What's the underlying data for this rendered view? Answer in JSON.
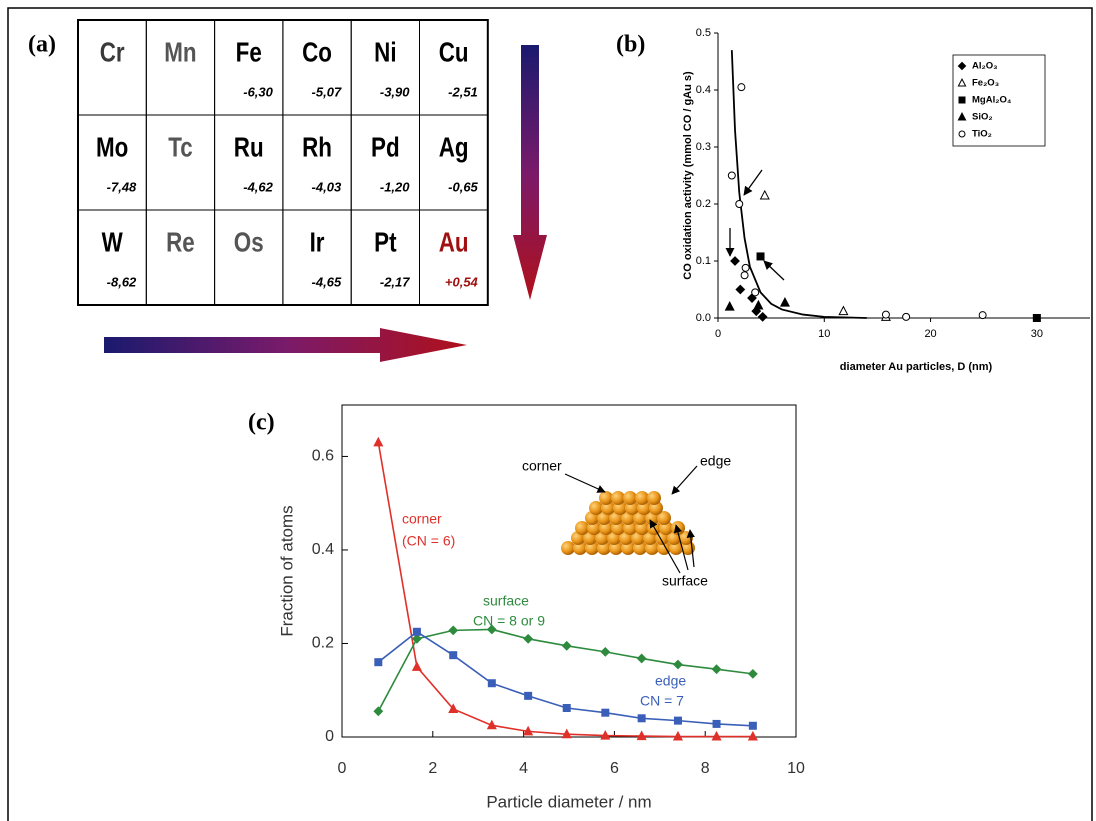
{
  "table_panel": {
    "label": "(a)",
    "cells": [
      [
        {
          "symbol": "Cr",
          "color": "#3a3a3a"
        },
        {
          "symbol": "Mn",
          "color": "#555555"
        },
        {
          "symbol": "Fe",
          "value": "-6,30",
          "color": "#000000"
        },
        {
          "symbol": "Co",
          "value": "-5,07",
          "color": "#000000"
        },
        {
          "symbol": "Ni",
          "value": "-3,90",
          "color": "#000000"
        },
        {
          "symbol": "Cu",
          "value": "-2,51",
          "color": "#000000"
        }
      ],
      [
        {
          "symbol": "Mo",
          "value": "-7,48",
          "color": "#000000"
        },
        {
          "symbol": "Tc",
          "color": "#555555"
        },
        {
          "symbol": "Ru",
          "value": "-4,62",
          "color": "#000000"
        },
        {
          "symbol": "Rh",
          "value": "-4,03",
          "color": "#000000"
        },
        {
          "symbol": "Pd",
          "value": "-1,20",
          "color": "#000000"
        },
        {
          "symbol": "Ag",
          "value": "-0,65",
          "color": "#000000"
        }
      ],
      [
        {
          "symbol": "W",
          "value": "-8,62",
          "color": "#000000"
        },
        {
          "symbol": "Re",
          "color": "#555555"
        },
        {
          "symbol": "Os",
          "color": "#555555"
        },
        {
          "symbol": "Ir",
          "value": "-4,65",
          "color": "#000000"
        },
        {
          "symbol": "Pt",
          "value": "-2,17",
          "color": "#000000"
        },
        {
          "symbol": "Au",
          "value": "+0,54",
          "color": "#a01010"
        }
      ]
    ]
  },
  "chart_data": [
    {
      "type": "scatter",
      "label": "(b)",
      "x_label": "diameter Au particles, D (nm)",
      "y_label": "CO oxidation activity (mmol CO / gAu s)",
      "xlim": [
        0,
        35
      ],
      "xticks": [
        0,
        10,
        20,
        30
      ],
      "ylim": [
        0,
        0.5
      ],
      "yticks": [
        {
          "value": 0,
          "label": "0.0"
        },
        0.1,
        0.2,
        0.3,
        0.4,
        0.5
      ],
      "series": [
        {
          "name": "Al₂O₃",
          "marker": "diamond",
          "color": "#000000",
          "x": [
            1.6,
            2.1,
            3.2,
            3.6,
            4.2
          ],
          "values": [
            0.1,
            0.05,
            0.035,
            0.012,
            0.002
          ]
        },
        {
          "name": "Fe₂O₃",
          "marker": "triangle-open",
          "color": "#000000",
          "x": [
            4.4,
            11.8,
            15.8
          ],
          "values": [
            0.215,
            0.012,
            0.002
          ]
        },
        {
          "name": "MgAl₂O₄",
          "marker": "square",
          "color": "#000000",
          "x": [
            4.0,
            30
          ],
          "values": [
            0.108,
            0
          ]
        },
        {
          "name": "SiO₂",
          "marker": "triangle",
          "color": "#000000",
          "x": [
            1.1,
            3.8,
            6.3
          ],
          "values": [
            0.02,
            0.022,
            0.027
          ]
        },
        {
          "name": "TiO₂",
          "marker": "circle-open",
          "color": "#000000",
          "x": [
            2.2,
            1.3,
            2.0,
            2.6,
            2.5,
            3.5,
            15.8,
            17.7,
            24.9
          ],
          "values": [
            0.405,
            0.25,
            0.2,
            0.088,
            0.075,
            0.045,
            0.006,
            0.002,
            0.005
          ]
        }
      ],
      "fit_line": {
        "color": "#000000",
        "x": [
          1.3,
          1.6,
          2,
          2.5,
          3,
          4,
          5,
          6,
          8,
          10,
          14
        ],
        "values": [
          0.47,
          0.33,
          0.22,
          0.14,
          0.09,
          0.045,
          0.025,
          0.015,
          0.006,
          0.002,
          0
        ]
      }
    },
    {
      "type": "line",
      "label": "(c)",
      "x_label": "Particle diameter / nm",
      "y_label": "Fraction of atoms",
      "xlim": [
        0,
        10
      ],
      "xticks": [
        0,
        2,
        4,
        6,
        8,
        10
      ],
      "ylim": [
        0,
        0.71
      ],
      "yticks": [
        0,
        0.2,
        0.4,
        0.6
      ],
      "x": [
        0.8,
        1.65,
        2.45,
        3.3,
        4.1,
        4.95,
        5.8,
        6.6,
        7.4,
        8.25,
        9.05
      ],
      "series": [
        {
          "name": "corner",
          "label": "(CN = 6)",
          "marker": "triangle",
          "color": "#e0302a",
          "values": [
            0.63,
            0.15,
            0.06,
            0.025,
            0.012,
            0.006,
            0.003,
            0.002,
            0.001,
            0.001,
            0.001
          ]
        },
        {
          "name": "surface",
          "label": "CN = 8 or 9",
          "marker": "diamond",
          "color": "#2e8b3e",
          "values": [
            0.055,
            0.21,
            0.228,
            0.23,
            0.21,
            0.195,
            0.182,
            0.168,
            0.155,
            0.145,
            0.135
          ]
        },
        {
          "name": "edge",
          "label": "CN = 7",
          "marker": "square",
          "color": "#3a5fb8",
          "values": [
            0.16,
            0.225,
            0.175,
            0.115,
            0.088,
            0.062,
            0.052,
            0.04,
            0.035,
            0.028,
            0.024
          ]
        }
      ],
      "inset_labels": [
        "corner",
        "edge",
        "surface"
      ]
    }
  ]
}
